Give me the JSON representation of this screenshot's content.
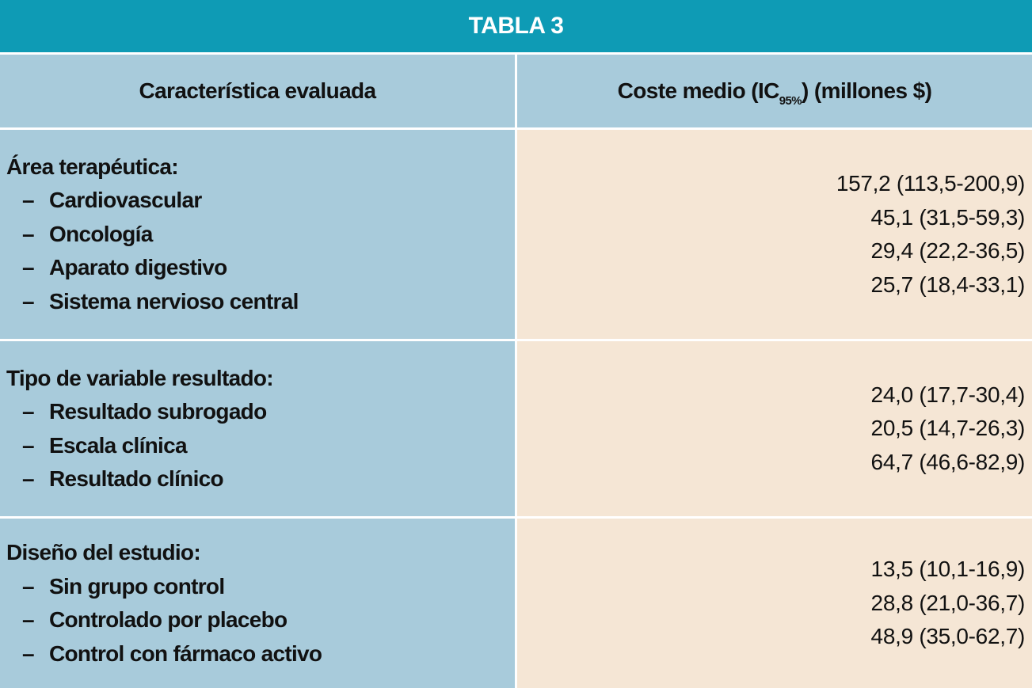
{
  "title": "TABLA 3",
  "header": {
    "left": "Característica evaluada",
    "right": {
      "before": "Coste medio (IC",
      "subscript": "95%",
      "after": ") (millones $)"
    }
  },
  "sections": [
    {
      "heading": "Área terapéutica:",
      "items": [
        "Cardiovascular",
        "Oncología",
        "Aparato digestivo",
        "Sistema nervioso central"
      ],
      "values": [
        "157,2 (113,5-200,9)",
        "45,1 (31,5-59,3)",
        "29,4 (22,2-36,5)",
        "25,7 (18,4-33,1)"
      ]
    },
    {
      "heading": "Tipo de variable resultado:",
      "items": [
        "Resultado subrogado",
        "Escala clínica",
        "Resultado clínico"
      ],
      "values": [
        "24,0 (17,7-30,4)",
        "20,5 (14,7-26,3)",
        "64,7 (46,6-82,9)"
      ]
    },
    {
      "heading": "Diseño del estudio:",
      "items": [
        "Sin grupo control",
        "Controlado por placebo",
        "Control con fármaco activo"
      ],
      "values": [
        "13,5 (10,1-16,9)",
        "28,8 (21,0-36,7)",
        "48,9 (35,0-62,7)"
      ]
    }
  ]
}
